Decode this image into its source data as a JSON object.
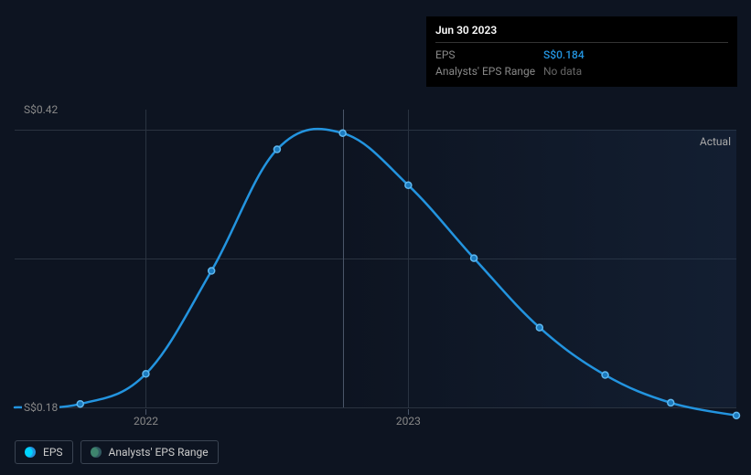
{
  "tooltip": {
    "date": "Jun 30 2023",
    "rows": [
      {
        "label": "EPS",
        "value": "S$0.184",
        "cls": "tooltip-value-eps"
      },
      {
        "label": "Analysts' EPS Range",
        "value": "No data",
        "cls": "tooltip-value-nodata"
      }
    ]
  },
  "chart": {
    "type": "line",
    "y_axis": {
      "top_label": "S$0.42",
      "bottom_label": "S$0.18",
      "top_value": 0.42,
      "bottom_value": 0.18
    },
    "x_axis": {
      "min": 2021.5,
      "max": 2024.25,
      "ticks": [
        {
          "pos": 2022,
          "label": "2022"
        },
        {
          "pos": 2023,
          "label": "2023"
        }
      ]
    },
    "actual_region": {
      "start": 2022.75,
      "label": "Actual"
    },
    "highlight_x": 2022.75,
    "series_eps": {
      "color": "#2394df",
      "line_width": 2.5,
      "marker_radius": 3.5,
      "marker_fill": "#1b7bbf",
      "marker_stroke": "#5fb8ef",
      "points": [
        {
          "x": 2021.5,
          "y": 0.18,
          "marker": false
        },
        {
          "x": 2021.75,
          "y": 0.183
        },
        {
          "x": 2022.0,
          "y": 0.209
        },
        {
          "x": 2022.25,
          "y": 0.298
        },
        {
          "x": 2022.5,
          "y": 0.403
        },
        {
          "x": 2022.75,
          "y": 0.417
        },
        {
          "x": 2023.0,
          "y": 0.372
        },
        {
          "x": 2023.25,
          "y": 0.309
        },
        {
          "x": 2023.5,
          "y": 0.249
        },
        {
          "x": 2023.75,
          "y": 0.208
        },
        {
          "x": 2024.0,
          "y": 0.184
        },
        {
          "x": 2024.25,
          "y": 0.173
        }
      ]
    },
    "grid_color": "#2a3340",
    "gridlines_y_count": 3,
    "background": "#0d1421"
  },
  "legend": {
    "items": [
      {
        "key": "eps",
        "label": "EPS",
        "swatch_cls": "swatch-eps"
      },
      {
        "key": "range",
        "label": "Analysts' EPS Range",
        "swatch_cls": "swatch-range"
      }
    ]
  }
}
